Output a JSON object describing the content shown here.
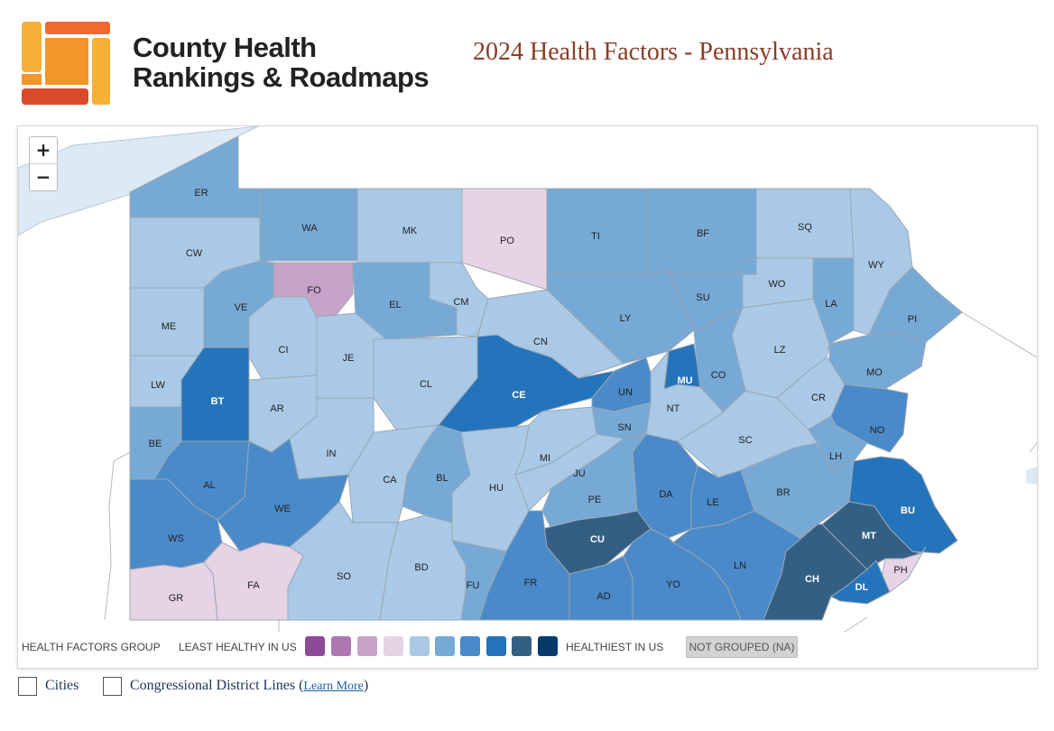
{
  "brand": {
    "line1": "County Health",
    "line2": "Rankings & Roadmaps"
  },
  "title": "2024 Health Factors - Pennsylvania",
  "zoom": {
    "in": "+",
    "out": "−"
  },
  "colors": {
    "g1": "#8c4a97",
    "g2": "#ae77b1",
    "g3": "#c8a2c8",
    "g4": "#e6d3e6",
    "g5": "#a9c9e6",
    "g6": "#77a9d6",
    "g7": "#4a8ac8",
    "g8": "#2474bb",
    "g9": "#345f84",
    "g10": "#053a6b",
    "na": "#d2d2d2",
    "water": "#dde9f5",
    "road": "#b8b8b8",
    "border": "#9aa7b3"
  },
  "legend": {
    "group_label": "HEALTH FACTORS GROUP",
    "least": "LEAST HEALTHY IN US",
    "healthiest": "HEALTHIEST IN US",
    "na": "NOT GROUPED (NA)"
  },
  "counties": [
    {
      "code": "ER",
      "g": 6
    },
    {
      "code": "WA",
      "g": 6
    },
    {
      "code": "MK",
      "g": 5
    },
    {
      "code": "PO",
      "g": 4
    },
    {
      "code": "TI",
      "g": 6
    },
    {
      "code": "BF",
      "g": 6
    },
    {
      "code": "SQ",
      "g": 5
    },
    {
      "code": "WY",
      "g": 5
    },
    {
      "code": "CW",
      "g": 5
    },
    {
      "code": "FO",
      "g": 3
    },
    {
      "code": "EL",
      "g": 6
    },
    {
      "code": "CM",
      "g": 5
    },
    {
      "code": "WO",
      "g": 5
    },
    {
      "code": "LA",
      "g": 6
    },
    {
      "code": "PI",
      "g": 6
    },
    {
      "code": "SU",
      "g": 6
    },
    {
      "code": "ME",
      "g": 5
    },
    {
      "code": "VE",
      "g": 6
    },
    {
      "code": "LY",
      "g": 6
    },
    {
      "code": "CN",
      "g": 5
    },
    {
      "code": "CI",
      "g": 5
    },
    {
      "code": "JE",
      "g": 5
    },
    {
      "code": "LZ",
      "g": 5
    },
    {
      "code": "MO",
      "g": 6
    },
    {
      "code": "LW",
      "g": 5
    },
    {
      "code": "BT",
      "g": 8
    },
    {
      "code": "CL",
      "g": 5
    },
    {
      "code": "CE",
      "g": 8
    },
    {
      "code": "UN",
      "g": 7
    },
    {
      "code": "MU",
      "g": 8
    },
    {
      "code": "CO",
      "g": 6
    },
    {
      "code": "CR",
      "g": 5
    },
    {
      "code": "AR",
      "g": 5
    },
    {
      "code": "NT",
      "g": 5
    },
    {
      "code": "NO",
      "g": 7
    },
    {
      "code": "SN",
      "g": 6
    },
    {
      "code": "BE",
      "g": 6
    },
    {
      "code": "IN",
      "g": 5
    },
    {
      "code": "SC",
      "g": 5
    },
    {
      "code": "LH",
      "g": 6
    },
    {
      "code": "MI",
      "g": 5
    },
    {
      "code": "AL",
      "g": 7
    },
    {
      "code": "CA",
      "g": 5
    },
    {
      "code": "BL",
      "g": 6
    },
    {
      "code": "JU",
      "g": 5
    },
    {
      "code": "HU",
      "g": 5
    },
    {
      "code": "WE",
      "g": 7
    },
    {
      "code": "DA",
      "g": 7
    },
    {
      "code": "PE",
      "g": 6
    },
    {
      "code": "LE",
      "g": 7
    },
    {
      "code": "BR",
      "g": 6
    },
    {
      "code": "BU",
      "g": 8
    },
    {
      "code": "WS",
      "g": 7
    },
    {
      "code": "CU",
      "g": 9
    },
    {
      "code": "MT",
      "g": 9
    },
    {
      "code": "SO",
      "g": 5
    },
    {
      "code": "BD",
      "g": 5
    },
    {
      "code": "FR",
      "g": 7
    },
    {
      "code": "LN",
      "g": 7
    },
    {
      "code": "CH",
      "g": 9
    },
    {
      "code": "PH",
      "g": 4
    },
    {
      "code": "GR",
      "g": 4
    },
    {
      "code": "FA",
      "g": 4
    },
    {
      "code": "FU",
      "g": 6
    },
    {
      "code": "AD",
      "g": 7
    },
    {
      "code": "YO",
      "g": 7
    },
    {
      "code": "DL",
      "g": 8
    }
  ],
  "options": {
    "cities": "Cities",
    "districts": "Congressional District Lines",
    "learn_more": "Learn More"
  }
}
